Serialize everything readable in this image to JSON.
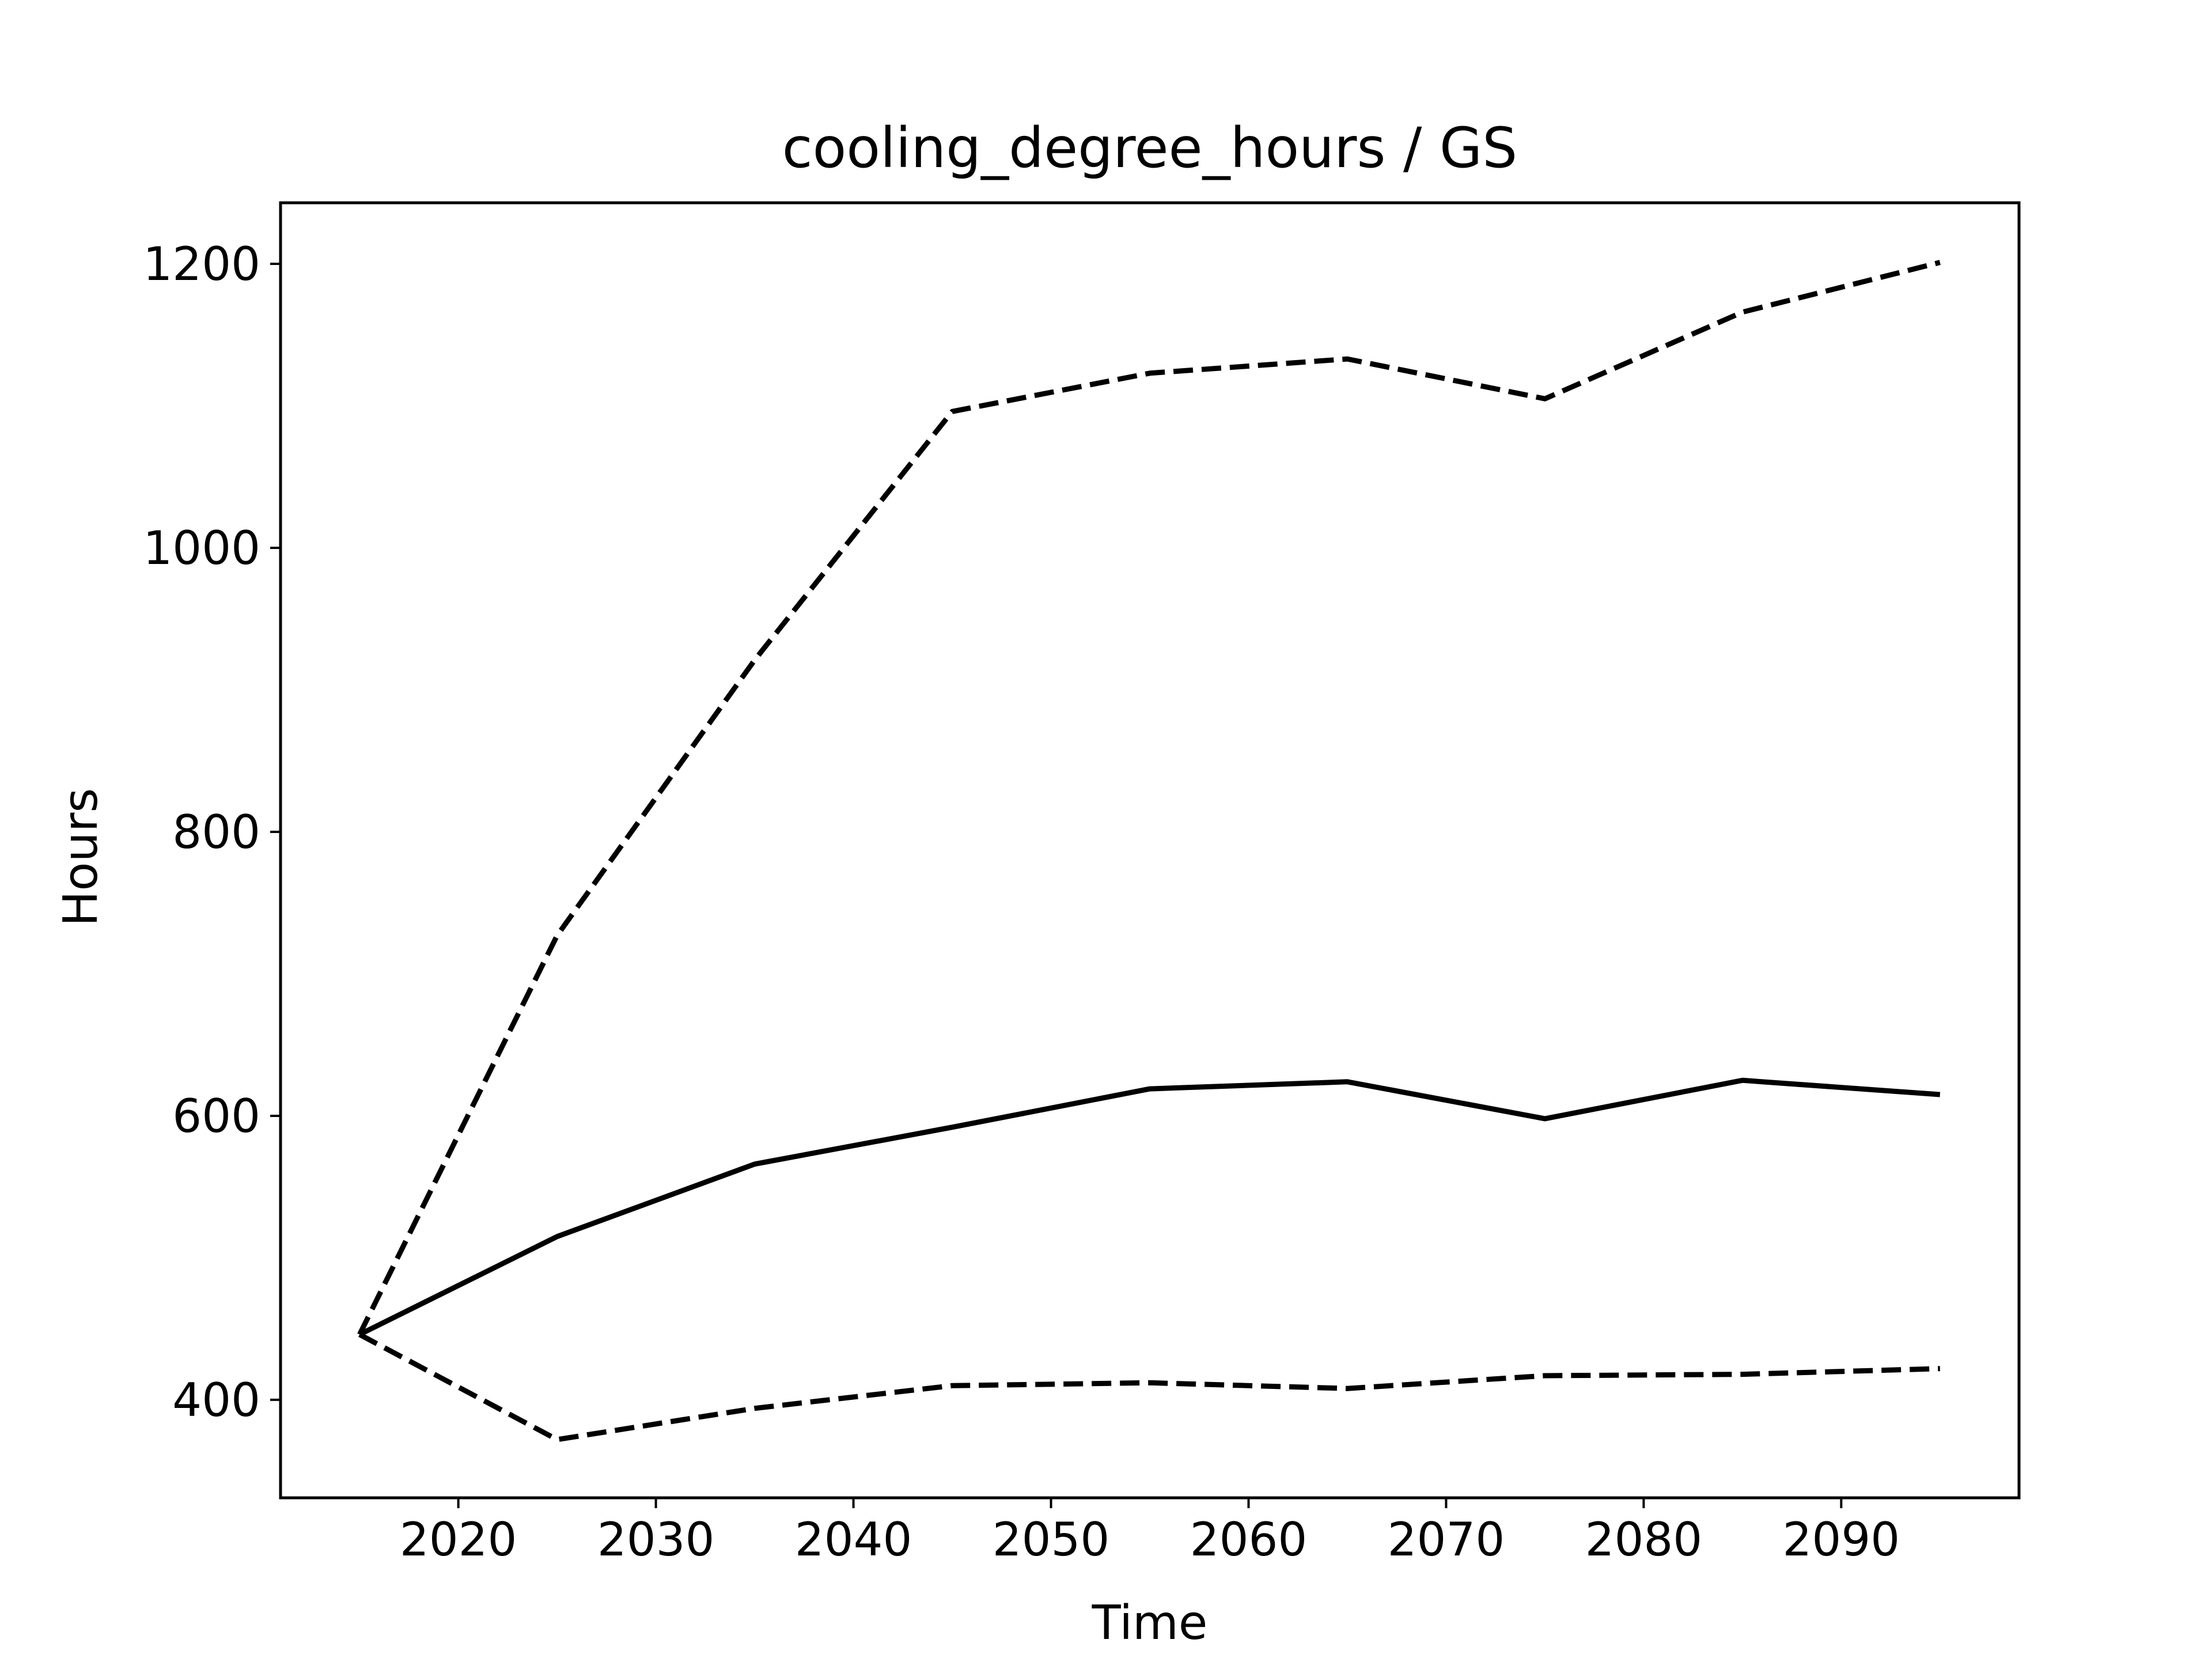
{
  "chart_data": {
    "type": "line",
    "title": "cooling_degree_hours / GS",
    "xlabel": "Time",
    "ylabel": "Hours",
    "xlim": [
      2011,
      2099
    ],
    "ylim": [
      331,
      1243
    ],
    "xticks": [
      2020,
      2030,
      2040,
      2050,
      2060,
      2070,
      2080,
      2090
    ],
    "yticks": [
      400,
      600,
      800,
      1000,
      1200
    ],
    "x": [
      2015,
      2025,
      2035,
      2045,
      2055,
      2065,
      2075,
      2085,
      2095
    ],
    "grid": false,
    "legend": "none",
    "series": [
      {
        "style": "solid",
        "color": "#000000",
        "values": [
          446,
          515,
          566,
          592,
          619,
          624,
          598,
          625,
          615
        ]
      },
      {
        "style": "dashed",
        "color": "#000000",
        "values": [
          446,
          727,
          921,
          1096,
          1123,
          1133,
          1105,
          1166,
          1201
        ]
      },
      {
        "style": "dashed",
        "color": "#000000",
        "values": [
          446,
          372,
          394,
          410,
          412,
          408,
          417,
          418,
          422
        ]
      }
    ]
  }
}
